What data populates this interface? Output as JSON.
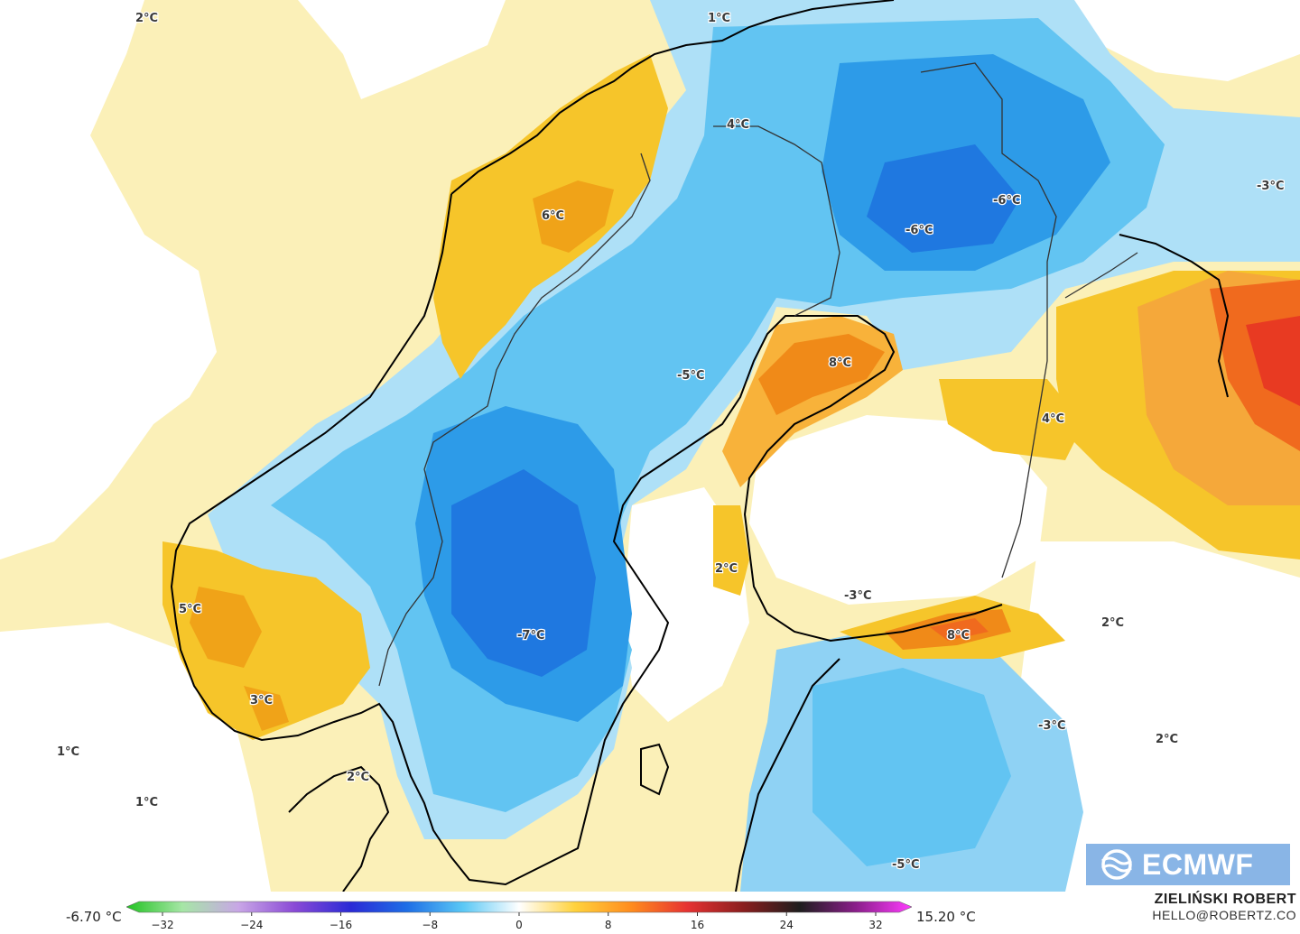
{
  "map": {
    "background_color": "#fbf0b8",
    "labels": [
      {
        "id": "l1",
        "text": "2°C"
      },
      {
        "id": "l2",
        "text": "1°C"
      },
      {
        "id": "l3",
        "text": "4°C"
      },
      {
        "id": "l4",
        "text": "6°C"
      },
      {
        "id": "l5",
        "text": "-6°C"
      },
      {
        "id": "l6",
        "text": "-6°C"
      },
      {
        "id": "l7",
        "text": "-3°C"
      },
      {
        "id": "l8",
        "text": "-5°C"
      },
      {
        "id": "l9",
        "text": "8°C"
      },
      {
        "id": "l10",
        "text": "4°C"
      },
      {
        "id": "l11",
        "text": "2°C"
      },
      {
        "id": "l12",
        "text": "-3°C"
      },
      {
        "id": "l13",
        "text": "5°C"
      },
      {
        "id": "l14",
        "text": "-7°C"
      },
      {
        "id": "l15",
        "text": "8°C"
      },
      {
        "id": "l16",
        "text": "2°C"
      },
      {
        "id": "l17",
        "text": "3°C"
      },
      {
        "id": "l18",
        "text": "1°C"
      },
      {
        "id": "l19",
        "text": "-3°C"
      },
      {
        "id": "l20",
        "text": "2°C"
      },
      {
        "id": "l21",
        "text": "2°C"
      },
      {
        "id": "l22",
        "text": "1°C"
      },
      {
        "id": "l23",
        "text": "-5°C"
      }
    ]
  },
  "colorbar": {
    "min_label": "-6.70 °C",
    "max_label": "15.20 °C",
    "ticks": [
      "−32",
      "−24",
      "−16",
      "−8",
      "0",
      "8",
      "16",
      "24",
      "32"
    ],
    "gradient_colors": [
      "#22c322",
      "#a6e6a6",
      "#c8a6e6",
      "#8a4ad6",
      "#2a2ad6",
      "#1e6ee6",
      "#5ac8f5",
      "#ffffff",
      "#ffd23c",
      "#ff8c1e",
      "#e63232",
      "#8a1e1e",
      "#1e1e1e",
      "#8a1e8a",
      "#ff3cff"
    ]
  },
  "credit": {
    "name": "ZIELIŃSKI ROBERT",
    "email": "HELLO@ROBERTZ.CO"
  },
  "logo": {
    "text": "ECMWF"
  }
}
